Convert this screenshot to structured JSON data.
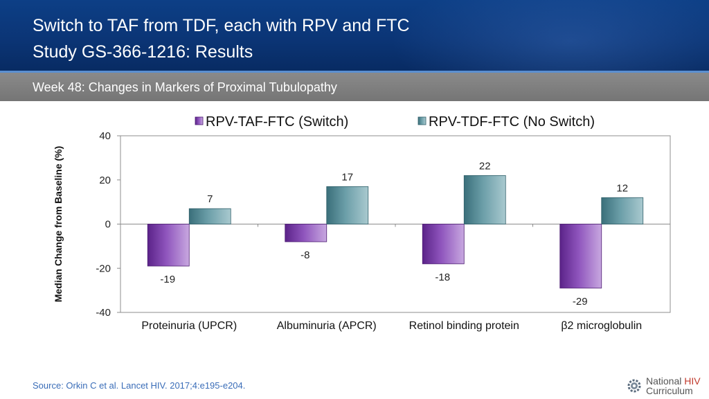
{
  "header": {
    "title_line1": "Switch to TAF from TDF, each with RPV and FTC",
    "title_line2": "Study GS-366-1216: Results"
  },
  "subheader": {
    "text": "Week 48: Changes in Markers of Proximal Tubulopathy"
  },
  "footer": {
    "source": "Source: Orkin C et al. Lancet HIV. 2017;4:e195-e204.",
    "logo_line1_a": "National ",
    "logo_line1_b": "HIV",
    "logo_line2": "Curriculum"
  },
  "colors": {
    "header": "#0b3576",
    "subbar": "#7f7f7f",
    "series1": "#7b3fa8",
    "series2": "#4f8a96"
  },
  "chart_data": {
    "type": "bar",
    "title": "",
    "ylabel": "Median Change from Baseline (%)",
    "xlabel": "",
    "categories": [
      "Proteinuria (UPCR)",
      "Albuminuria (APCR)",
      "Retinol binding protein",
      "β2 microglobulin"
    ],
    "series": [
      {
        "name": "RPV-TAF-FTC (Switch)",
        "values": [
          -19,
          -8,
          -18,
          -29
        ]
      },
      {
        "name": "RPV-TDF-FTC (No Switch)",
        "values": [
          7,
          17,
          22,
          12
        ]
      }
    ],
    "ylim": [
      -40,
      40
    ],
    "yticks": [
      40,
      20,
      0,
      -20,
      -40
    ],
    "legend": "top",
    "grid": false
  }
}
